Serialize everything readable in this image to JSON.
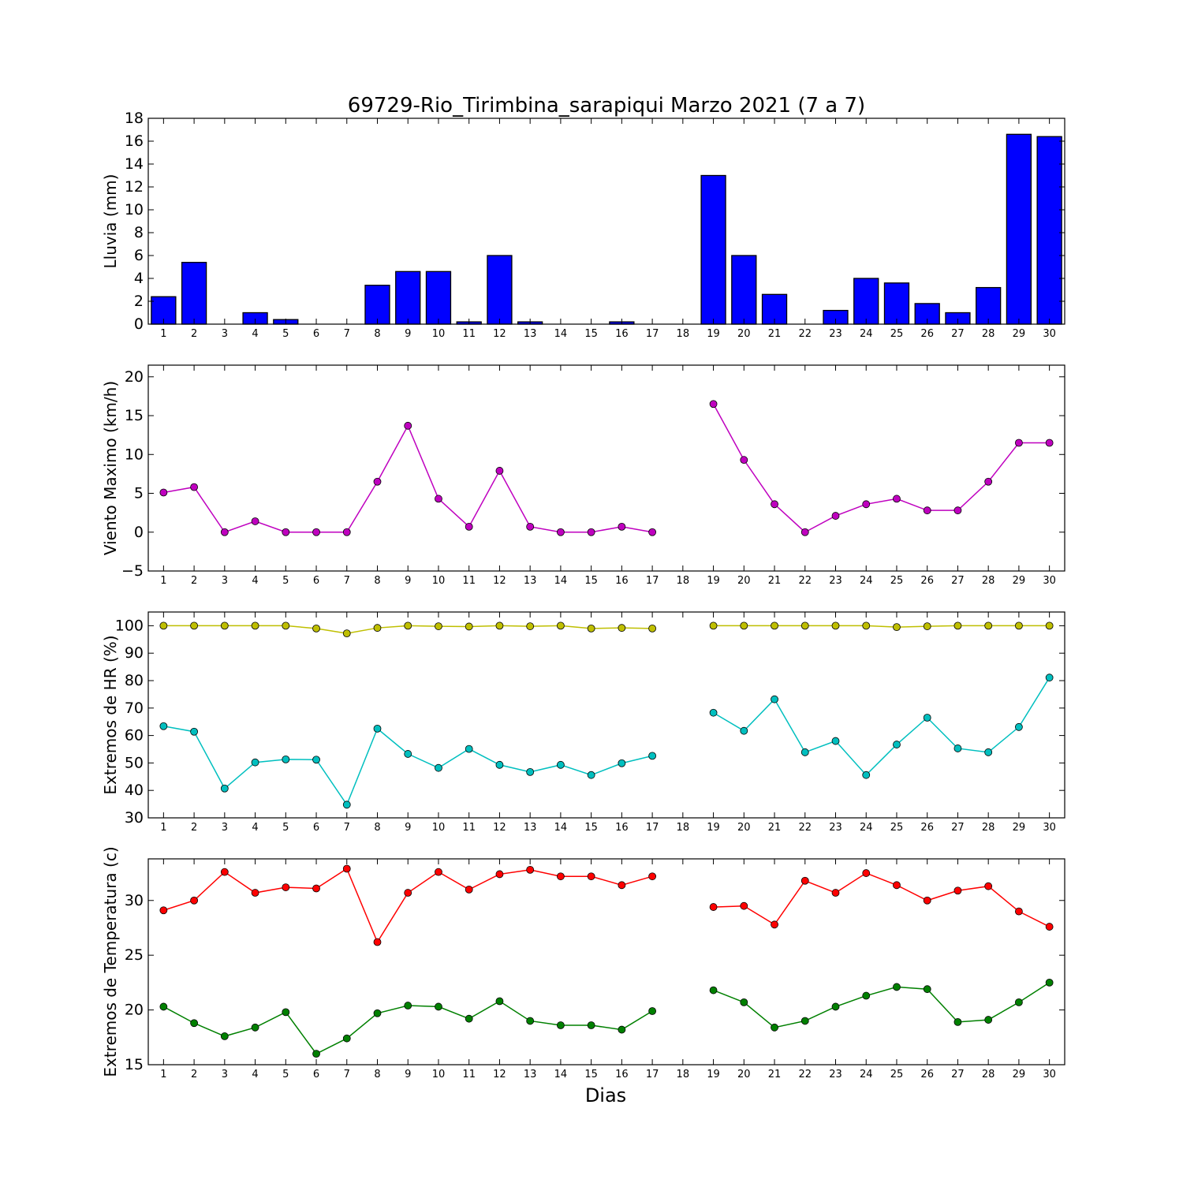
{
  "chart_data": {
    "title": "69729-Rio_Tirimbina_sarapiqui Marzo 2021  (7 a 7)",
    "xlabel": "Dias",
    "days": [
      1,
      2,
      3,
      4,
      5,
      6,
      7,
      8,
      9,
      10,
      11,
      12,
      13,
      14,
      15,
      16,
      17,
      18,
      19,
      20,
      21,
      22,
      23,
      24,
      25,
      26,
      27,
      28,
      29,
      30
    ],
    "panels": [
      {
        "type": "bar",
        "ylabel": "Lluvia (mm)",
        "ylim": [
          0,
          18
        ],
        "yticks": [
          0,
          2,
          4,
          6,
          8,
          10,
          12,
          14,
          16,
          18
        ],
        "series": [
          {
            "color": "#0000ff",
            "values": [
              2.4,
              5.4,
              0,
              1.0,
              0.4,
              0,
              0,
              3.4,
              4.6,
              4.6,
              0.2,
              6.0,
              0.2,
              0,
              0,
              0.2,
              0,
              0,
              13.0,
              6.0,
              2.6,
              0,
              1.2,
              4.0,
              3.6,
              1.8,
              1.0,
              3.2,
              16.6,
              16.4
            ]
          }
        ]
      },
      {
        "type": "line",
        "ylabel": "Viento Maximo (km/h)",
        "ylim": [
          -5,
          21.5
        ],
        "yticks": [
          -5,
          0,
          5,
          10,
          15,
          20
        ],
        "ytick_labels": [
          "−5",
          "0",
          "5",
          "10",
          "15",
          "20"
        ],
        "series": [
          {
            "color": "#bf00bf",
            "values": [
              5.1,
              5.8,
              0,
              1.4,
              0,
              0,
              0,
              6.5,
              13.7,
              4.3,
              0.7,
              7.9,
              0.7,
              0,
              0,
              0.7,
              0,
              null,
              16.5,
              9.3,
              3.6,
              0,
              2.1,
              3.6,
              4.3,
              2.8,
              2.8,
              6.5,
              11.5,
              11.5
            ]
          }
        ]
      },
      {
        "type": "line",
        "ylabel": "Extremos de HR (%)",
        "ylim": [
          30,
          105
        ],
        "yticks": [
          30,
          40,
          50,
          60,
          70,
          80,
          90,
          100
        ],
        "series": [
          {
            "color": "#bfbf00",
            "values": [
              100,
              100,
              100,
              100,
              100,
              99,
              97.2,
              99.2,
              100,
              99.8,
              99.7,
              100,
              99.8,
              100,
              99,
              99.2,
              99,
              null,
              100,
              100,
              100,
              100,
              100,
              100,
              99.5,
              99.8,
              100,
              100,
              100,
              100
            ]
          },
          {
            "color": "#00bfbf",
            "values": [
              63.4,
              61.4,
              40.7,
              50.2,
              51.3,
              51.2,
              34.8,
              62.5,
              53.3,
              48.2,
              55.1,
              49.3,
              46.7,
              49.3,
              45.6,
              49.9,
              52.6,
              null,
              68.3,
              61.7,
              73.2,
              53.9,
              58,
              45.6,
              56.7,
              66.5,
              55.3,
              53.9,
              63.1,
              81.1
            ]
          }
        ]
      },
      {
        "type": "line",
        "ylabel": "Extremos de Temperatura (c)",
        "ylim": [
          15,
          33.8
        ],
        "yticks": [
          15,
          20,
          25,
          30
        ],
        "series": [
          {
            "color": "#ff0000",
            "values": [
              29.1,
              30,
              32.6,
              30.7,
              31.2,
              31.1,
              32.9,
              26.2,
              30.7,
              32.6,
              31,
              32.4,
              32.8,
              32.2,
              32.2,
              31.4,
              32.2,
              null,
              29.4,
              29.5,
              27.8,
              31.8,
              30.7,
              32.5,
              31.4,
              30,
              30.9,
              31.3,
              29,
              27.6
            ]
          },
          {
            "color": "#008000",
            "values": [
              20.3,
              18.8,
              17.6,
              18.4,
              19.8,
              16,
              17.4,
              19.7,
              20.4,
              20.3,
              19.2,
              20.8,
              19,
              18.6,
              18.6,
              18.2,
              19.9,
              null,
              21.8,
              20.7,
              18.4,
              19,
              20.3,
              21.3,
              22.1,
              21.9,
              18.9,
              19.1,
              20.7,
              22.5
            ]
          }
        ]
      }
    ]
  }
}
